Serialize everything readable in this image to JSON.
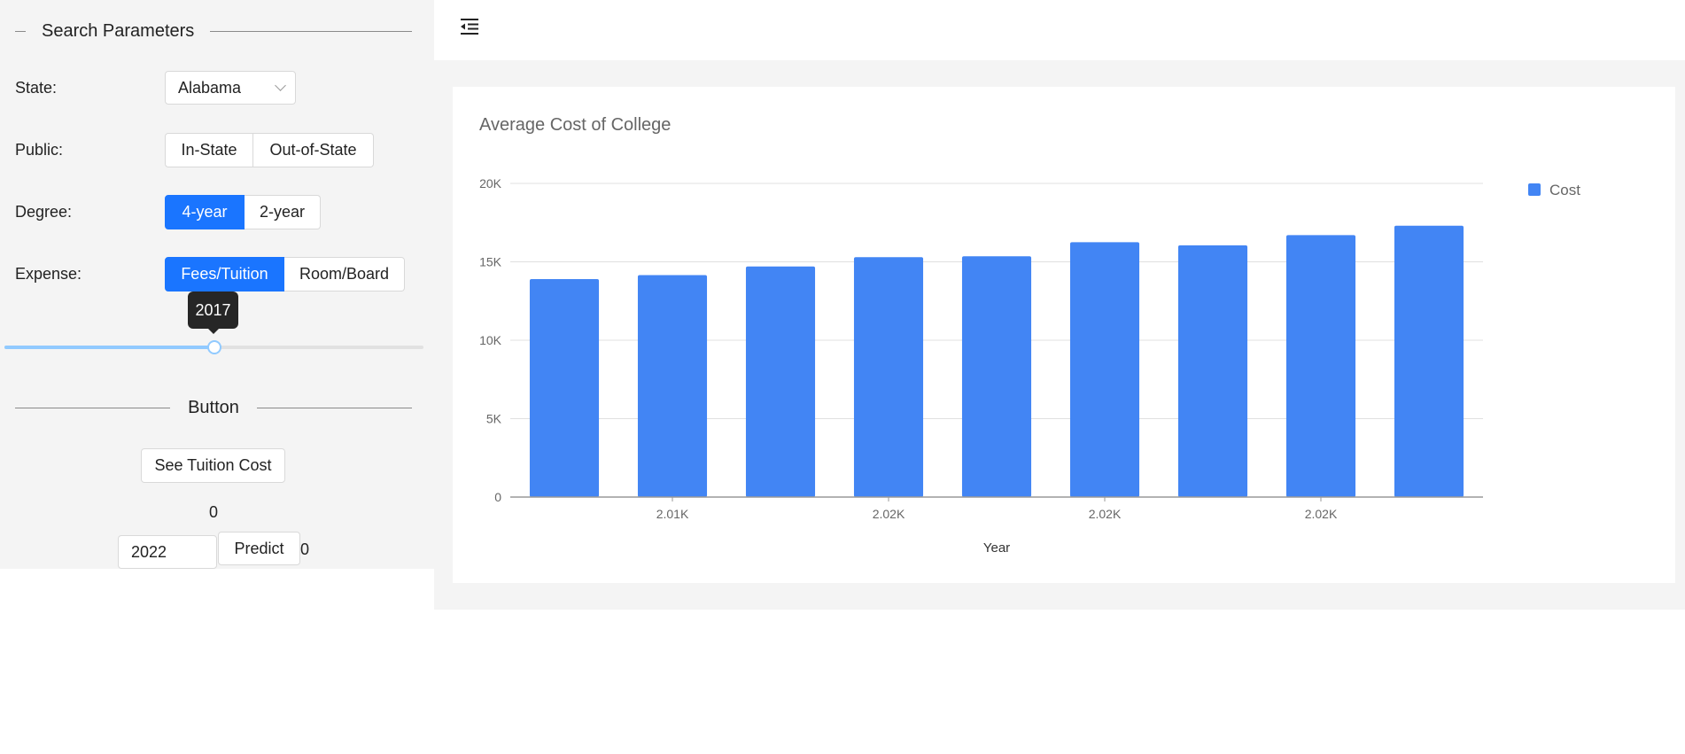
{
  "sidebar": {
    "title": "Search Parameters",
    "state_label": "State:",
    "state_value": "Alabama",
    "public_label": "Public:",
    "public_options": [
      "In-State",
      "Out-of-State"
    ],
    "degree_label": "Degree:",
    "degree_options": [
      "4-year",
      "2-year"
    ],
    "degree_selected": "4-year",
    "expense_label": "Expense:",
    "expense_options": [
      "Fees/Tuition",
      "Room/Board"
    ],
    "expense_selected": "Fees/Tuition",
    "year_slider": {
      "value": "2017",
      "fill_fraction": 0.5
    },
    "button_section_title": "Button",
    "see_tuition_label": "See Tuition Cost",
    "count_value": "0",
    "year_input_value": "2022",
    "predict_label": "Predict",
    "predict_result": "0"
  },
  "header": {
    "menu_icon": "menu-fold-icon"
  },
  "colors": {
    "accent": "#1a75ff",
    "bar": "#4285f4",
    "sidebar_bg": "#f4f4f4"
  },
  "chart_data": {
    "type": "bar",
    "title": "Average Cost of College",
    "xlabel": "Year",
    "ylabel": "",
    "ylim": [
      0,
      20000
    ],
    "yticks": [
      "0",
      "5K",
      "10K",
      "15K",
      "20K"
    ],
    "xticks": [
      "2.01K",
      "2.02K",
      "2.02K",
      "2.02K"
    ],
    "legend": {
      "position": "top-right",
      "label": "Cost"
    },
    "grid": true,
    "series": [
      {
        "name": "Cost",
        "values": [
          13900,
          14150,
          14700,
          15300,
          15350,
          16250,
          16050,
          16700,
          17300
        ]
      }
    ]
  }
}
